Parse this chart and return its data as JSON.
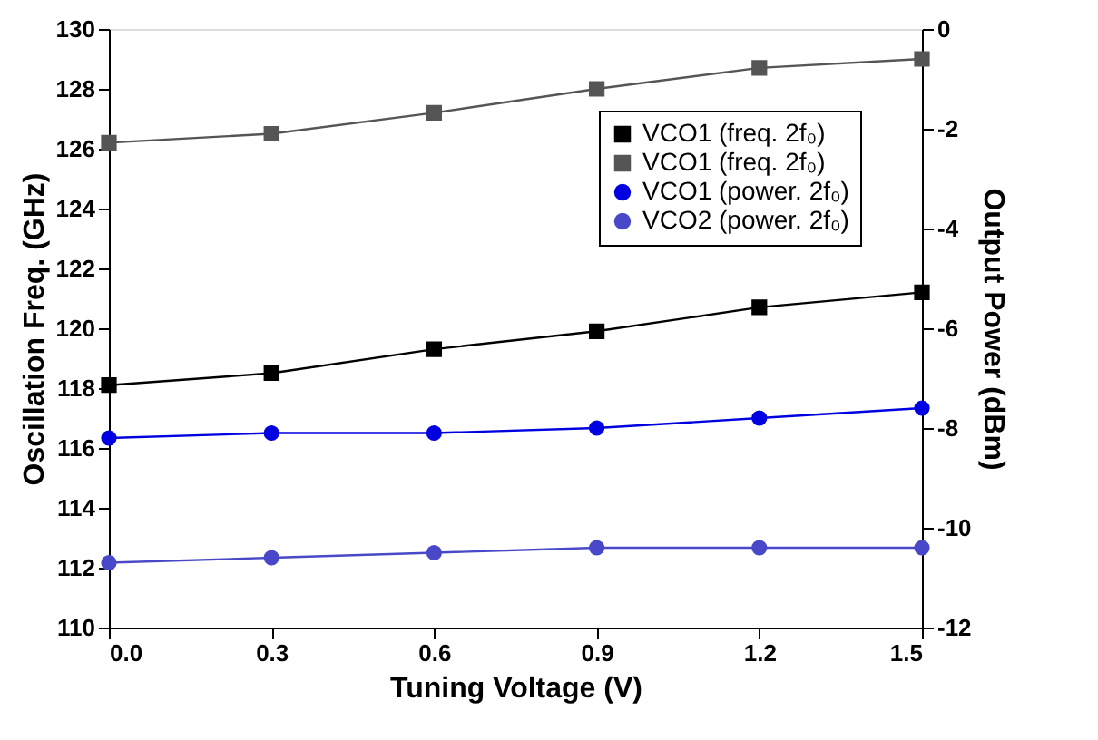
{
  "chart_data": {
    "type": "line",
    "xlabel": "Tuning Voltage (V)",
    "ylabel": "Oscillation Freq. (GHz)",
    "y2label": "Output Power (dBm)",
    "x": [
      0,
      0.3,
      0.6,
      0.9,
      1.2,
      1.5
    ],
    "xlim": [
      0,
      1.5
    ],
    "xticks": [
      {
        "value": 0,
        "label": "0.0"
      },
      0.3,
      0.6,
      0.9,
      1.2,
      1.5
    ],
    "ylim": [
      110,
      130
    ],
    "yticks": [
      110,
      112,
      114,
      116,
      118,
      120,
      122,
      124,
      126,
      128,
      130
    ],
    "y2lim": [
      -12,
      0
    ],
    "y2ticks": [
      -12,
      -10,
      -8,
      -6,
      -4,
      -2,
      0
    ],
    "series": [
      {
        "name": "VCO1 (freq. 2f₀)",
        "color": "#000000",
        "marker": "square",
        "values": [
          118.1,
          118.5,
          119.3,
          119.9,
          120.7,
          121.2
        ]
      },
      {
        "name": "VCO1 (freq. 2f₀)",
        "color": "#555555",
        "marker": "square",
        "values": [
          126.2,
          126.5,
          127.2,
          128.0,
          128.7,
          129.0
        ]
      },
      {
        "name": "VCO1 (power. 2f₀)",
        "color": "#0000e0",
        "marker": "circle",
        "axis": "y2",
        "values": [
          -8.2,
          -8.1,
          -8.1,
          -8.0,
          -7.8,
          -7.6
        ]
      },
      {
        "name": "VCO2 (power. 2f₀)",
        "color": "#4848c8",
        "marker": "circle",
        "axis": "y2",
        "values": [
          -10.7,
          -10.6,
          -10.5,
          -10.4,
          -10.4,
          -10.4
        ]
      }
    ],
    "legend": "top right",
    "grid": false,
    "line_style": "solid"
  }
}
